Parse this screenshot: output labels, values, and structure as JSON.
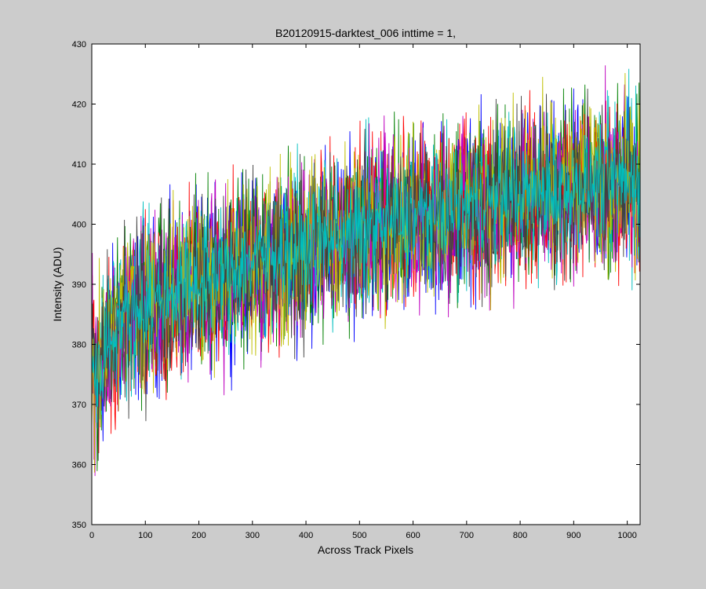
{
  "chart_data": {
    "type": "line",
    "title": "B20120915-darktest_006 inttime = 1,",
    "xlabel": "Across Track Pixels",
    "ylabel": "Intensity (ADU)",
    "xlim": [
      0,
      1024
    ],
    "ylim": [
      350,
      430
    ],
    "xticks": [
      0,
      100,
      200,
      300,
      400,
      500,
      600,
      700,
      800,
      900,
      1000
    ],
    "yticks": [
      350,
      360,
      370,
      380,
      390,
      400,
      410,
      420,
      430
    ],
    "grid": false,
    "legend": "none",
    "series": [
      {
        "color": "#0000ff",
        "x": [
          0,
          10,
          25,
          50,
          100,
          150,
          200,
          250,
          300,
          350,
          400,
          450,
          500,
          550,
          600,
          650,
          700,
          750,
          800,
          850,
          900,
          950,
          1000,
          1024
        ],
        "values": [
          378,
          371,
          379,
          383,
          386,
          388,
          390,
          392,
          393,
          394,
          396,
          397,
          399,
          400,
          401,
          402,
          403,
          404,
          404,
          405,
          405,
          406,
          407,
          407
        ],
        "spread": 7
      },
      {
        "color": "#008000",
        "x": [
          0,
          10,
          25,
          50,
          100,
          150,
          200,
          250,
          300,
          350,
          400,
          450,
          500,
          550,
          600,
          650,
          700,
          750,
          800,
          850,
          900,
          950,
          1000,
          1024
        ],
        "values": [
          379,
          372,
          380,
          384,
          387,
          389,
          391,
          393,
          394,
          395,
          397,
          398,
          399,
          401,
          402,
          403,
          404,
          404,
          405,
          405,
          406,
          407,
          407,
          408
        ],
        "spread": 7
      },
      {
        "color": "#ff0000",
        "x": [
          0,
          10,
          25,
          50,
          100,
          150,
          200,
          250,
          300,
          350,
          400,
          450,
          500,
          550,
          600,
          650,
          700,
          750,
          800,
          850,
          900,
          950,
          1000,
          1024
        ],
        "values": [
          377,
          373,
          378,
          383,
          386,
          388,
          390,
          392,
          393,
          395,
          396,
          398,
          399,
          400,
          401,
          402,
          403,
          404,
          405,
          405,
          406,
          406,
          407,
          407
        ],
        "spread": 7
      },
      {
        "color": "#00bfbf",
        "x": [
          0,
          10,
          25,
          50,
          100,
          150,
          200,
          250,
          300,
          350,
          400,
          450,
          500,
          550,
          600,
          650,
          700,
          750,
          800,
          850,
          900,
          950,
          1000,
          1024
        ],
        "values": [
          378,
          372,
          379,
          384,
          387,
          389,
          391,
          392,
          394,
          395,
          396,
          398,
          399,
          400,
          401,
          402,
          403,
          404,
          405,
          406,
          406,
          407,
          407,
          408
        ],
        "spread": 7
      },
      {
        "color": "#bf00bf",
        "x": [
          0,
          10,
          25,
          50,
          100,
          150,
          200,
          250,
          300,
          350,
          400,
          450,
          500,
          550,
          600,
          650,
          700,
          750,
          800,
          850,
          900,
          950,
          1000,
          1024
        ],
        "values": [
          377,
          371,
          378,
          383,
          386,
          388,
          390,
          391,
          393,
          394,
          396,
          397,
          398,
          400,
          401,
          402,
          403,
          403,
          404,
          405,
          405,
          406,
          407,
          407
        ],
        "spread": 7
      },
      {
        "color": "#bfbf00",
        "x": [
          0,
          10,
          25,
          50,
          100,
          150,
          200,
          250,
          300,
          350,
          400,
          450,
          500,
          550,
          600,
          650,
          700,
          750,
          800,
          850,
          900,
          950,
          1000,
          1024
        ],
        "values": [
          379,
          372,
          380,
          384,
          387,
          389,
          391,
          393,
          394,
          395,
          397,
          398,
          399,
          401,
          402,
          403,
          404,
          405,
          405,
          406,
          406,
          407,
          408,
          408
        ],
        "spread": 7
      },
      {
        "color": "#404040",
        "x": [
          0,
          10,
          25,
          50,
          100,
          150,
          200,
          250,
          300,
          350,
          400,
          450,
          500,
          550,
          600,
          650,
          700,
          750,
          800,
          850,
          900,
          950,
          1000,
          1024
        ],
        "values": [
          378,
          372,
          379,
          383,
          386,
          388,
          390,
          392,
          393,
          395,
          396,
          397,
          399,
          400,
          401,
          402,
          403,
          404,
          404,
          405,
          406,
          406,
          407,
          407
        ],
        "spread": 7
      },
      {
        "color": "#00bfbf",
        "x": [
          0,
          10,
          25,
          50,
          100,
          150,
          200,
          250,
          300,
          350,
          400,
          450,
          500,
          550,
          600,
          650,
          700,
          750,
          800,
          850,
          900,
          950,
          1000,
          1024
        ],
        "values": [
          378,
          373,
          379,
          384,
          387,
          389,
          390,
          392,
          394,
          395,
          396,
          398,
          399,
          400,
          401,
          402,
          403,
          404,
          405,
          405,
          406,
          407,
          407,
          408
        ],
        "spread": 4
      }
    ]
  }
}
